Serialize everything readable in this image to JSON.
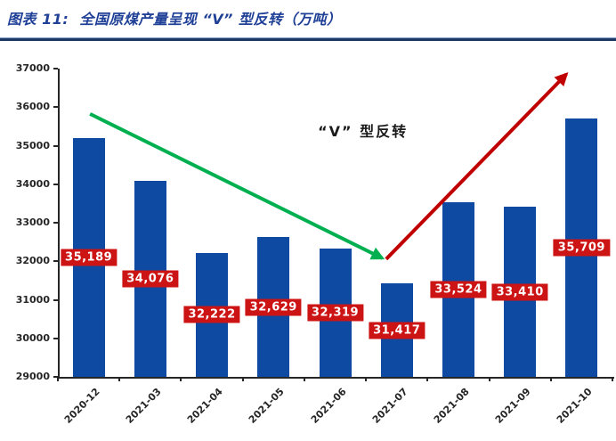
{
  "header": {
    "title": "图表 11:  全国原煤产量呈现 “V” 型反转（万吨）"
  },
  "chart_data": {
    "type": "bar",
    "title": "全国原煤产量呈现“V”型反转",
    "unit": "万吨",
    "categories": [
      "2020-12",
      "2021-03",
      "2021-04",
      "2021-05",
      "2021-06",
      "2021-07",
      "2021-08",
      "2021-09",
      "2021-10"
    ],
    "values": [
      35189,
      34076,
      32222,
      32629,
      32319,
      31417,
      33524,
      33410,
      35709
    ],
    "data_labels": [
      "35,189",
      "34,076",
      "32,222",
      "32,629",
      "32,319",
      "31,417",
      "33,524",
      "33,410",
      "35,709"
    ],
    "ylim": [
      29000,
      37000
    ],
    "ytick_step": 1000,
    "ytick_labels": [
      "29000",
      "30000",
      "31000",
      "32000",
      "33000",
      "34000",
      "35000",
      "36000",
      "37000"
    ],
    "grid": false,
    "legend": "none",
    "annotation": {
      "text": "“V” 型反转",
      "fx": 0.55,
      "fy": 0.2
    },
    "arrows": [
      {
        "name": "decline-arrow",
        "color": "#00B050",
        "from": [
          0.058,
          0.147
        ],
        "to": [
          0.585,
          0.615
        ]
      },
      {
        "name": "rebound-arrow",
        "color": "#C00000",
        "from": [
          0.592,
          0.618
        ],
        "to": [
          0.917,
          0.018
        ]
      }
    ],
    "colors": {
      "bar": "#0E49A2",
      "data_label_bg": "#CC1414",
      "data_label_text": "#FFFFFF",
      "title": "#1F4096",
      "divider": "#1F3864",
      "axis": "#262626"
    }
  }
}
